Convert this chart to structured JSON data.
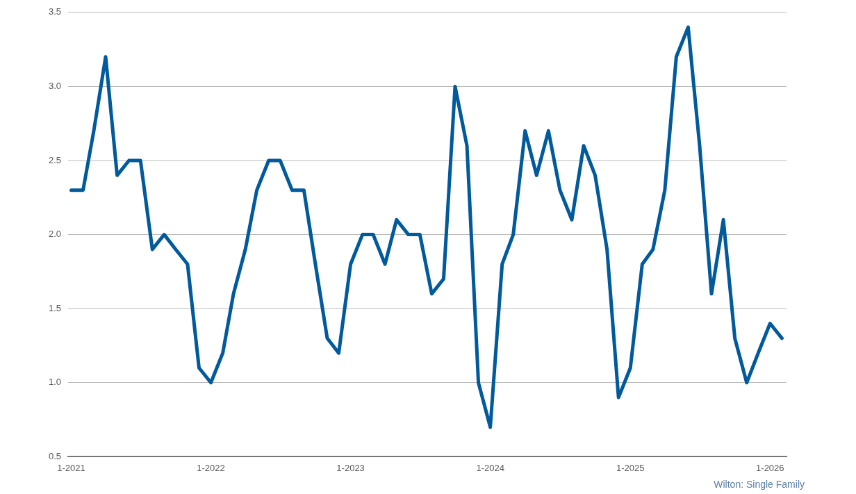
{
  "chart_data": {
    "type": "line",
    "x": [
      "2021-01",
      "2021-02",
      "2021-03",
      "2021-04",
      "2021-05",
      "2021-06",
      "2021-07",
      "2021-08",
      "2021-09",
      "2021-10",
      "2021-11",
      "2021-12",
      "2022-01",
      "2022-02",
      "2022-03",
      "2022-04",
      "2022-05",
      "2022-06",
      "2022-07",
      "2022-08",
      "2022-09",
      "2022-10",
      "2022-11",
      "2022-12",
      "2023-01",
      "2023-02",
      "2023-03",
      "2023-04",
      "2023-05",
      "2023-06",
      "2023-07",
      "2023-08",
      "2023-09",
      "2023-10",
      "2023-11",
      "2023-12",
      "2024-01",
      "2024-02",
      "2024-03",
      "2024-04",
      "2024-05",
      "2024-06",
      "2024-07",
      "2024-08",
      "2024-09",
      "2024-10",
      "2024-11",
      "2024-12",
      "2025-01",
      "2025-02",
      "2025-03",
      "2025-04",
      "2025-05",
      "2025-06",
      "2025-07",
      "2025-08",
      "2025-09",
      "2025-10",
      "2025-11",
      "2025-12",
      "2026-01",
      "2026-02"
    ],
    "series": [
      {
        "color": "#005a9c",
        "values": [
          2.3,
          2.3,
          2.7,
          3.2,
          2.4,
          2.5,
          2.5,
          1.9,
          2.0,
          1.9,
          1.8,
          1.1,
          1.0,
          1.2,
          1.6,
          1.9,
          2.3,
          2.5,
          2.5,
          2.3,
          2.3,
          1.8,
          1.3,
          1.2,
          1.8,
          2.0,
          2.0,
          1.8,
          2.1,
          2.0,
          2.0,
          1.6,
          1.7,
          3.0,
          2.6,
          1.0,
          0.7,
          1.8,
          2.0,
          2.7,
          2.4,
          2.7,
          2.3,
          2.1,
          2.6,
          2.4,
          1.9,
          0.9,
          1.1,
          1.8,
          1.9,
          2.3,
          3.2,
          3.4,
          2.6,
          1.6,
          2.1,
          1.3,
          1.0,
          1.2,
          1.4,
          1.3
        ]
      }
    ],
    "xlim": [
      "2020-12-24",
      "2026-02-13"
    ],
    "xticks": [
      {
        "value": "2021-01",
        "label": "1-2021"
      },
      {
        "value": "2022-01",
        "label": "1-2022"
      },
      {
        "value": "2023-01",
        "label": "1-2023"
      },
      {
        "value": "2024-01",
        "label": "1-2024"
      },
      {
        "value": "2025-01",
        "label": "1-2025"
      },
      {
        "value": "2026-01",
        "label": "1-2026"
      }
    ],
    "ylim": [
      0.5,
      3.5
    ],
    "yticks": [
      {
        "value": 0.5,
        "label": "0.5"
      },
      {
        "value": 1.0,
        "label": "1.0"
      },
      {
        "value": 1.5,
        "label": "1.5"
      },
      {
        "value": 2.0,
        "label": "2.0"
      },
      {
        "value": 2.5,
        "label": "2.5"
      },
      {
        "value": 3.0,
        "label": "3.0"
      },
      {
        "value": 3.5,
        "label": "3.5"
      }
    ],
    "grid": "y",
    "legend": false,
    "marker": "none",
    "line_style": "solid",
    "annotations": [
      "Wilton: Single Family"
    ]
  }
}
